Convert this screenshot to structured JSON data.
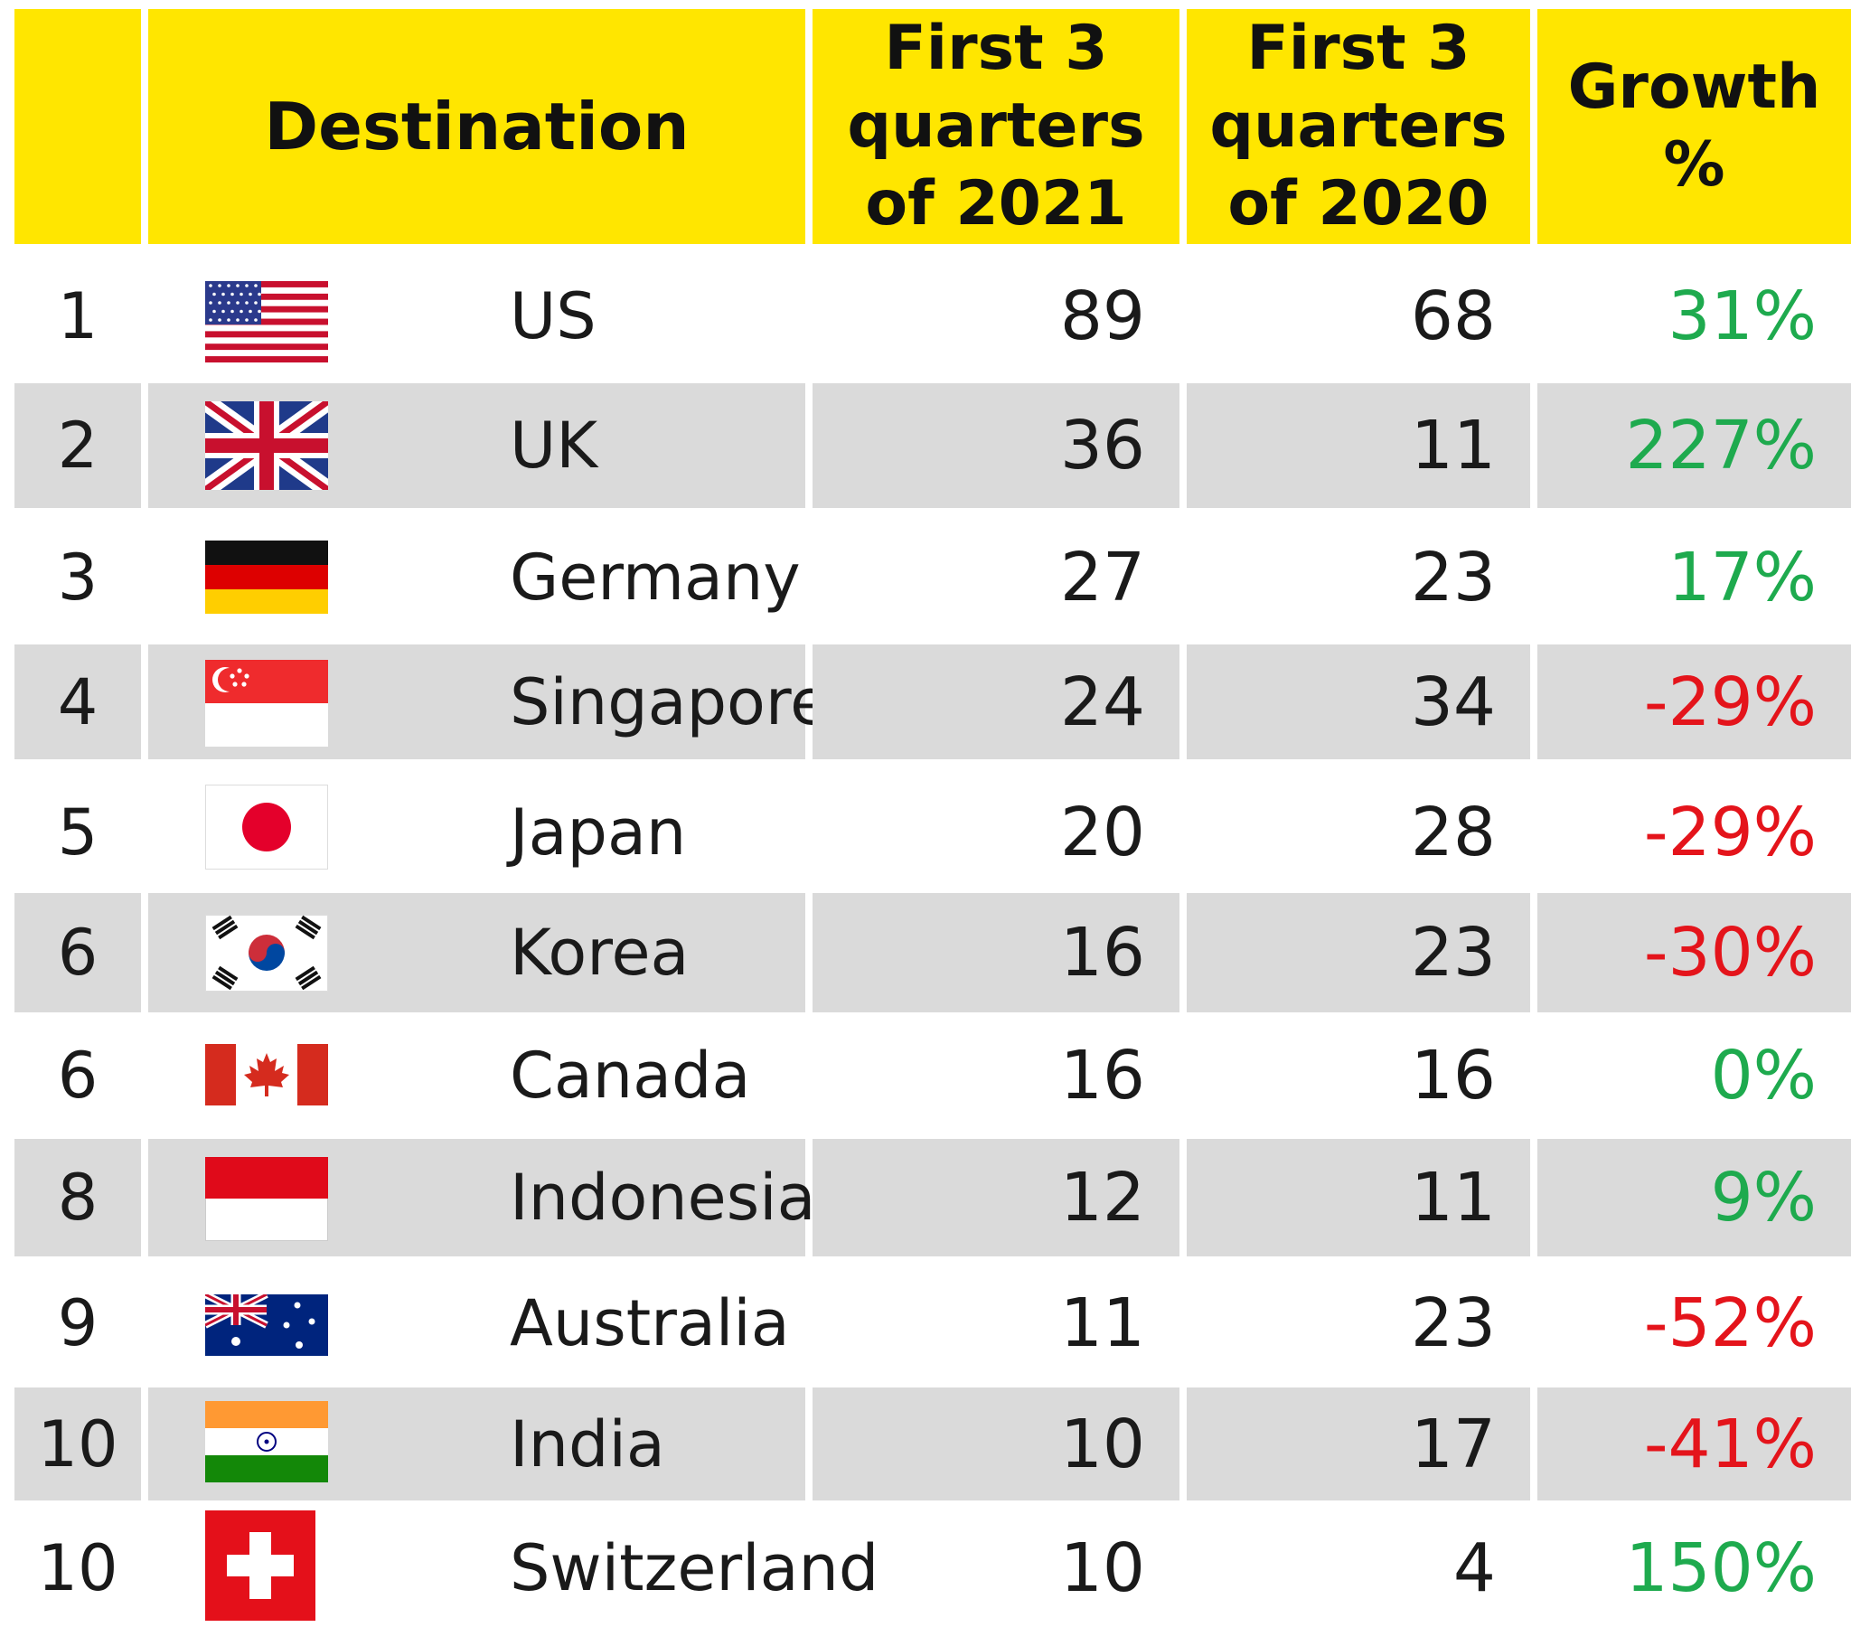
{
  "chart_data": {
    "type": "table",
    "columns": [
      "",
      "Destination",
      "First 3\nquarters\nof 2021",
      "First 3\nquarters\nof 2020",
      "Growth\n%"
    ],
    "rows": [
      {
        "rank": "1",
        "destination": "US",
        "flag": "us-flag-icon",
        "q2021": "89",
        "q2020": "68",
        "growth": "31%",
        "growth_color": "#1eaa4e"
      },
      {
        "rank": "2",
        "destination": "UK",
        "flag": "uk-flag-icon",
        "q2021": "36",
        "q2020": "11",
        "growth": "227%",
        "growth_color": "#1eaa4e"
      },
      {
        "rank": "3",
        "destination": "Germany",
        "flag": "germany-flag-icon",
        "q2021": "27",
        "q2020": "23",
        "growth": "17%",
        "growth_color": "#1eaa4e"
      },
      {
        "rank": "4",
        "destination": "Singapore",
        "flag": "singapore-flag-icon",
        "q2021": "24",
        "q2020": "34",
        "growth": "-29%",
        "growth_color": "#e4141b"
      },
      {
        "rank": "5",
        "destination": "Japan",
        "flag": "japan-flag-icon",
        "q2021": "20",
        "q2020": "28",
        "growth": "-29%",
        "growth_color": "#e4141b"
      },
      {
        "rank": "6",
        "destination": "Korea",
        "flag": "korea-flag-icon",
        "q2021": "16",
        "q2020": "23",
        "growth": "-30%",
        "growth_color": "#e4141b"
      },
      {
        "rank": "6",
        "destination": "Canada",
        "flag": "canada-flag-icon",
        "q2021": "16",
        "q2020": "16",
        "growth": "0%",
        "growth_color": "#1eaa4e"
      },
      {
        "rank": "8",
        "destination": "Indonesia",
        "flag": "indonesia-flag-icon",
        "q2021": "12",
        "q2020": "11",
        "growth": "9%",
        "growth_color": "#1eaa4e"
      },
      {
        "rank": "9",
        "destination": "Australia",
        "flag": "australia-flag-icon",
        "q2021": "11",
        "q2020": "23",
        "growth": "-52%",
        "growth_color": "#e4141b"
      },
      {
        "rank": "10",
        "destination": "India",
        "flag": "india-flag-icon",
        "q2021": "10",
        "q2020": "17",
        "growth": "-41%",
        "growth_color": "#e4141b"
      },
      {
        "rank": "10",
        "destination": "Switzerland",
        "flag": "switzerland-flag-icon",
        "q2021": "10",
        "q2020": "4",
        "growth": "150%",
        "growth_color": "#1eaa4e"
      }
    ],
    "colors": {
      "header": "#ffe600",
      "stripe": "#dadada",
      "positive": "#1eaa4e",
      "negative": "#e4141b"
    }
  }
}
